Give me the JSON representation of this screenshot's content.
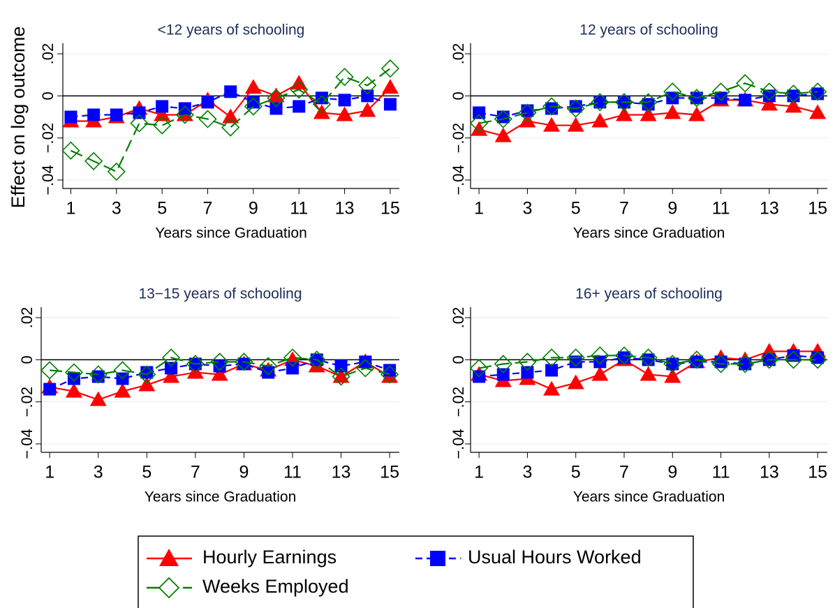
{
  "chart_data": [
    {
      "type": "line",
      "title": "<12 years of schooling",
      "xlabel": "Years since Graduation",
      "ylabel": "Effect on log outcome",
      "x": [
        1,
        2,
        3,
        4,
        5,
        6,
        7,
        8,
        9,
        10,
        11,
        12,
        13,
        14,
        15
      ],
      "series": [
        {
          "name": "Hourly Earnings",
          "color": "#ff0000",
          "marker": "triangle",
          "dash": "solid",
          "values": [
            -0.012,
            -0.012,
            -0.01,
            -0.006,
            -0.009,
            -0.009,
            -0.002,
            -0.01,
            0.004,
            0.0,
            0.006,
            -0.008,
            -0.009,
            -0.007,
            0.004
          ]
        },
        {
          "name": "Usual Hours Worked",
          "color": "#0000ff",
          "marker": "square",
          "dash": "dashed",
          "values": [
            -0.01,
            -0.009,
            -0.009,
            -0.008,
            -0.005,
            -0.006,
            -0.003,
            0.002,
            -0.003,
            -0.006,
            -0.005,
            -0.001,
            -0.002,
            0.0,
            -0.004
          ]
        },
        {
          "name": "Weeks Employed",
          "color": "#007f00",
          "marker": "diamond",
          "dash": "longdash",
          "values": [
            -0.026,
            -0.031,
            -0.036,
            -0.013,
            -0.014,
            -0.009,
            -0.011,
            -0.015,
            -0.005,
            -0.001,
            0.003,
            -0.004,
            0.009,
            0.005,
            0.013
          ]
        }
      ],
      "xlim": [
        0.65,
        15.4
      ],
      "xticks": [
        1,
        3,
        5,
        7,
        9,
        11,
        13,
        15
      ],
      "ylim": [
        -0.044,
        0.025
      ],
      "yticks": [
        {
          "value": -0.04,
          "label": "−.04"
        },
        {
          "value": -0.02,
          "label": "−.02"
        },
        0,
        {
          "value": 0.02,
          "label": ".02"
        }
      ],
      "hline": 0,
      "grid": true
    },
    {
      "type": "line",
      "title": "12 years of schooling",
      "xlabel": "Years since Graduation",
      "x": [
        1,
        2,
        3,
        4,
        5,
        6,
        7,
        8,
        9,
        10,
        11,
        12,
        13,
        14,
        15
      ],
      "series": [
        {
          "name": "Hourly Earnings",
          "color": "#ff0000",
          "marker": "triangle",
          "dash": "solid",
          "values": [
            -0.016,
            -0.019,
            -0.012,
            -0.014,
            -0.014,
            -0.012,
            -0.009,
            -0.009,
            -0.008,
            -0.009,
            -0.002,
            -0.002,
            -0.004,
            -0.005,
            -0.008
          ]
        },
        {
          "name": "Usual Hours Worked",
          "color": "#0000ff",
          "marker": "square",
          "dash": "dashed",
          "values": [
            -0.008,
            -0.01,
            -0.007,
            -0.006,
            -0.005,
            -0.003,
            -0.003,
            -0.004,
            -0.001,
            -0.001,
            -0.001,
            -0.002,
            0.0,
            0.0,
            0.001
          ]
        },
        {
          "name": "Weeks Employed",
          "color": "#007f00",
          "marker": "diamond",
          "dash": "longdash",
          "values": [
            -0.013,
            -0.011,
            -0.008,
            -0.005,
            -0.006,
            -0.003,
            -0.003,
            -0.003,
            0.002,
            -0.001,
            0.002,
            0.006,
            0.002,
            0.001,
            0.002
          ]
        }
      ],
      "xlim": [
        0.65,
        15.4
      ],
      "xticks": [
        1,
        3,
        5,
        7,
        9,
        11,
        13,
        15
      ],
      "ylim": [
        -0.044,
        0.025
      ],
      "yticks": [
        {
          "value": -0.04,
          "label": "−.04"
        },
        {
          "value": -0.02,
          "label": "−.02"
        },
        0,
        {
          "value": 0.02,
          "label": ".02"
        }
      ],
      "hline": 0,
      "grid": true
    },
    {
      "type": "line",
      "title": "13−15 years of schooling",
      "xlabel": "Years since Graduation",
      "x": [
        1,
        2,
        3,
        4,
        5,
        6,
        7,
        8,
        9,
        10,
        11,
        12,
        13,
        14,
        15
      ],
      "series": [
        {
          "name": "Hourly Earnings",
          "color": "#ff0000",
          "marker": "triangle",
          "dash": "solid",
          "values": [
            -0.013,
            -0.015,
            -0.019,
            -0.015,
            -0.012,
            -0.008,
            -0.006,
            -0.007,
            -0.002,
            -0.005,
            0.0,
            -0.003,
            -0.008,
            -0.001,
            -0.008
          ]
        },
        {
          "name": "Usual Hours Worked",
          "color": "#0000ff",
          "marker": "square",
          "dash": "dashed",
          "values": [
            -0.014,
            -0.009,
            -0.008,
            -0.009,
            -0.006,
            -0.004,
            -0.002,
            -0.003,
            -0.002,
            -0.006,
            -0.004,
            0.0,
            -0.003,
            -0.001,
            -0.005
          ]
        },
        {
          "name": "Weeks Employed",
          "color": "#007f00",
          "marker": "diamond",
          "dash": "longdash",
          "values": [
            -0.005,
            -0.006,
            -0.007,
            -0.005,
            -0.007,
            0.001,
            -0.002,
            -0.001,
            -0.001,
            -0.003,
            0.001,
            0.0,
            -0.008,
            -0.004,
            -0.007
          ]
        }
      ],
      "xlim": [
        0.65,
        15.4
      ],
      "xticks": [
        1,
        3,
        5,
        7,
        9,
        11,
        13,
        15
      ],
      "ylim": [
        -0.044,
        0.025
      ],
      "yticks": [
        {
          "value": -0.04,
          "label": "−.04"
        },
        {
          "value": -0.02,
          "label": "−.02"
        },
        0,
        {
          "value": 0.02,
          "label": ".02"
        }
      ],
      "hline": 0,
      "grid": true
    },
    {
      "type": "line",
      "title": "16+ years of schooling",
      "xlabel": "Years since Graduation",
      "x": [
        1,
        2,
        3,
        4,
        5,
        6,
        7,
        8,
        9,
        10,
        11,
        12,
        13,
        14,
        15
      ],
      "series": [
        {
          "name": "Hourly Earnings",
          "color": "#ff0000",
          "marker": "triangle",
          "dash": "solid",
          "values": [
            -0.007,
            -0.01,
            -0.009,
            -0.014,
            -0.011,
            -0.007,
            0.0,
            -0.007,
            -0.008,
            -0.001,
            0.001,
            0.0,
            0.004,
            0.004,
            0.004
          ]
        },
        {
          "name": "Usual Hours Worked",
          "color": "#0000ff",
          "marker": "square",
          "dash": "dashed",
          "values": [
            -0.008,
            -0.007,
            -0.006,
            -0.005,
            -0.001,
            -0.001,
            0.001,
            0.0,
            -0.002,
            -0.001,
            -0.001,
            -0.002,
            0.0,
            0.002,
            0.001
          ]
        },
        {
          "name": "Weeks Employed",
          "color": "#007f00",
          "marker": "diamond",
          "dash": "longdash",
          "values": [
            -0.004,
            -0.002,
            -0.001,
            0.001,
            0.001,
            0.002,
            0.002,
            0.001,
            -0.002,
            0.0,
            -0.002,
            -0.002,
            0.0,
            0.0,
            0.0
          ]
        }
      ],
      "xlim": [
        0.65,
        15.4
      ],
      "xticks": [
        1,
        3,
        5,
        7,
        9,
        11,
        13,
        15
      ],
      "ylim": [
        -0.044,
        0.025
      ],
      "yticks": [
        {
          "value": -0.04,
          "label": "−.04"
        },
        {
          "value": -0.02,
          "label": "−.02"
        },
        0,
        {
          "value": 0.02,
          "label": ".02"
        }
      ],
      "hline": 0,
      "grid": true
    }
  ]
}
